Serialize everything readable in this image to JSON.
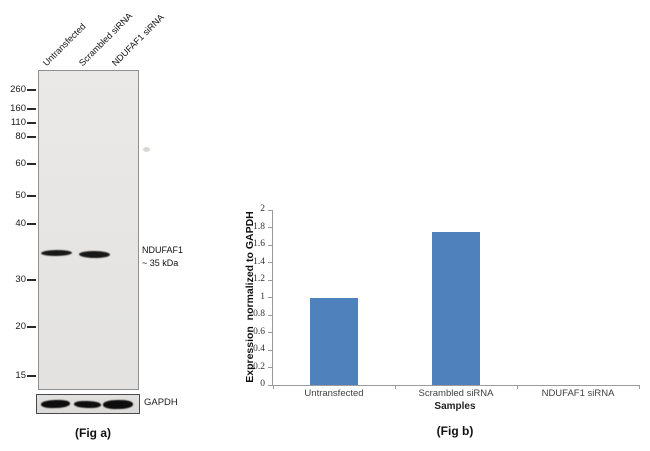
{
  "panel_a": {
    "fig_label": "(Fig a)",
    "lane_labels": [
      "Untransfected",
      "Scrambled siRNA",
      "NDUFAF1 siRNA"
    ],
    "ladder_kda": [
      "260",
      "160",
      "110",
      "80",
      "60",
      "50",
      "40",
      "30",
      "20",
      "15"
    ],
    "band_annotation": {
      "line1": "NDUFAF1",
      "line2": "~ 35 kDa"
    },
    "loading_control_label": "GAPDH"
  },
  "panel_b": {
    "fig_label": "(Fig b)"
  },
  "chart_data": {
    "type": "bar",
    "title": "",
    "categories": [
      "Untransfected",
      "Scrambled siRNA",
      "NDUFAF1 siRNA"
    ],
    "values": [
      1.0,
      1.75,
      0
    ],
    "xlabel": "Samples",
    "ylabel": "Expression  normalized to GAPDH",
    "ylim": [
      0,
      2
    ],
    "ytick_step": 0.2,
    "bar_color": "#4f81bd",
    "axis_color": "#9b9b9b",
    "grid": false,
    "legend": false
  }
}
